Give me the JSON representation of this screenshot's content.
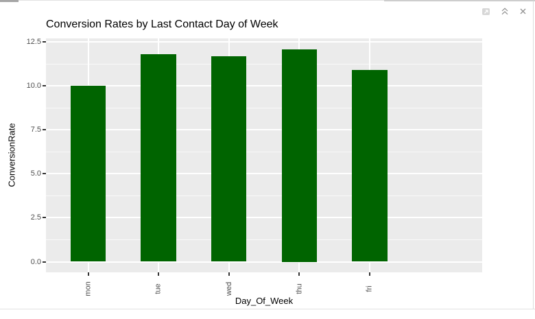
{
  "pane": {
    "controls": [
      {
        "icon": "pop-out-window-icon"
      },
      {
        "icon": "collapse-output-chevrons-icon"
      },
      {
        "icon": "clear-output-close-icon"
      }
    ]
  },
  "chart_data": {
    "type": "bar",
    "title": "Conversion Rates by Last Contact Day of Week",
    "xlabel": "Day_Of_Week",
    "ylabel": "ConversionRate",
    "categories": [
      "mon",
      "tue",
      "wed",
      "thu",
      "fri"
    ],
    "values": [
      10.0,
      11.8,
      11.7,
      12.1,
      10.9
    ],
    "y_ticks": [
      0.0,
      2.5,
      5.0,
      7.5,
      10.0,
      12.5
    ],
    "y_tick_labels": [
      "0.0",
      "2.5",
      "5.0",
      "7.5",
      "10.0",
      "12.5"
    ],
    "ylim": [
      0,
      12.5
    ],
    "bar_color": "#006400",
    "panel_bg": "#EBEBEB",
    "grid_color": "#FFFFFF",
    "grid": "on",
    "legend": "none"
  }
}
